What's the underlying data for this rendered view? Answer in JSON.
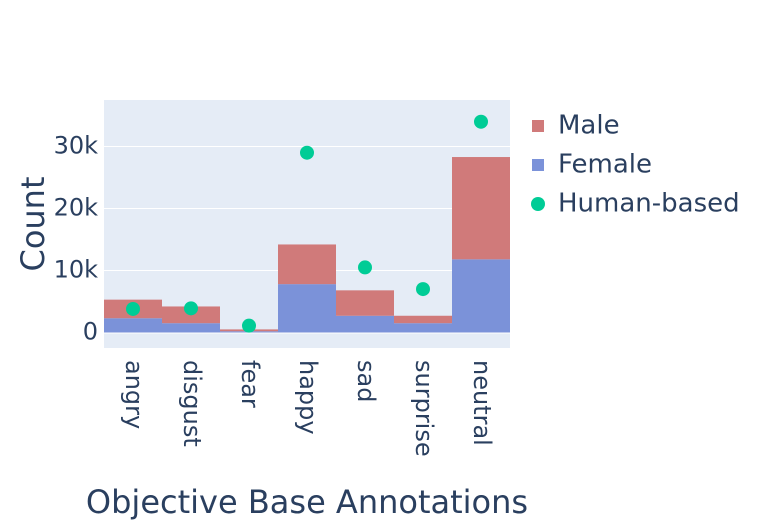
{
  "chart_data": {
    "type": "bar",
    "barmode": "stack",
    "categories": [
      "angry",
      "disgust",
      "fear",
      "happy",
      "sad",
      "surprise",
      "neutral"
    ],
    "series": [
      {
        "name": "Female",
        "kind": "bar",
        "color": "#7b92d9",
        "values": [
          2300,
          1500,
          200,
          7800,
          2700,
          1500,
          11800
        ]
      },
      {
        "name": "Male",
        "kind": "bar",
        "color": "#d07a7a",
        "values": [
          3000,
          2700,
          300,
          6400,
          4100,
          1200,
          16500
        ]
      },
      {
        "name": "Human-based",
        "kind": "scatter",
        "color": "#00cc96",
        "values": [
          3800,
          3900,
          1100,
          29000,
          10500,
          7000,
          34000
        ]
      }
    ],
    "legend": [
      {
        "name": "Male",
        "color": "#d07a7a",
        "symbol": "square"
      },
      {
        "name": "Female",
        "color": "#7b92d9",
        "symbol": "square"
      },
      {
        "name": "Human-based",
        "color": "#00cc96",
        "symbol": "circle"
      }
    ],
    "ylim": [
      -2500,
      37500
    ],
    "yticks": [
      0,
      10000,
      20000,
      30000
    ],
    "ytick_labels": [
      "0",
      "10k",
      "20k",
      "30k"
    ],
    "xlabel": "Objective Base Annotations",
    "ylabel": "Count",
    "grid": true,
    "legend_position": "right",
    "plot_bgcolor": "#e5ecf6"
  }
}
